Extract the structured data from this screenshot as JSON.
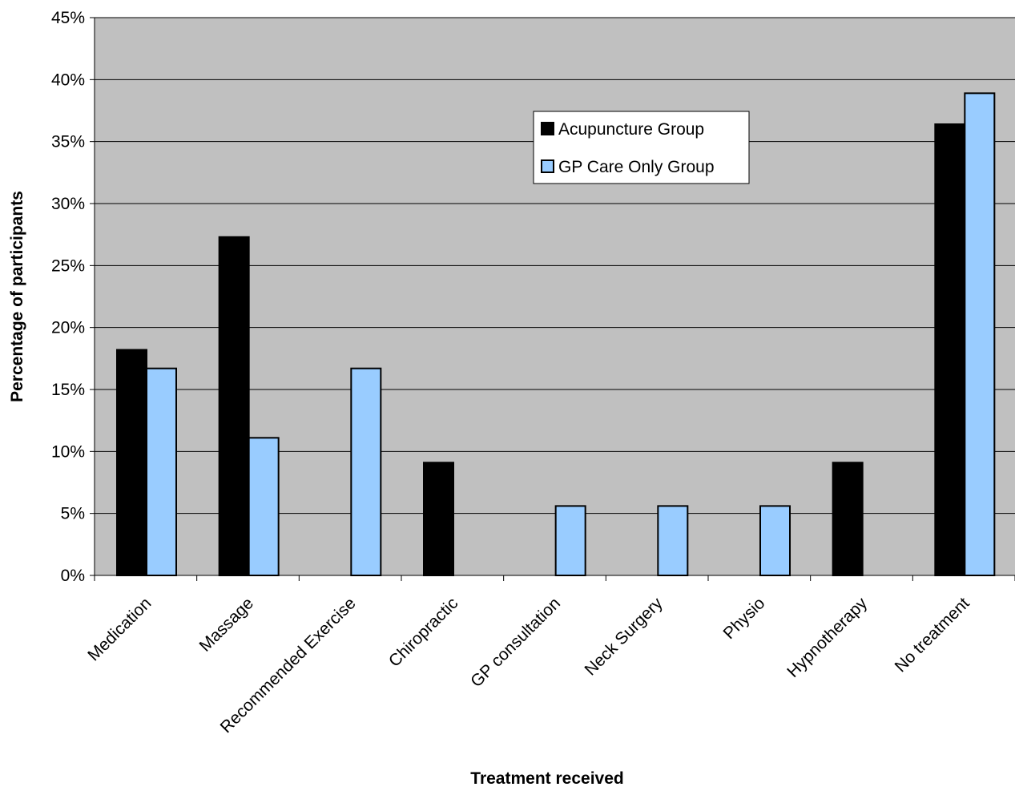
{
  "chart_data": {
    "type": "bar",
    "title": "",
    "xlabel": "Treatment received",
    "ylabel": "Percentage of participants",
    "ylim": [
      0,
      45
    ],
    "y_ticks": [
      0,
      5,
      10,
      15,
      20,
      25,
      30,
      35,
      40,
      45
    ],
    "y_tick_format": "%",
    "grid": true,
    "legend_position": "top-center",
    "plot_background": "#c0c0c0",
    "categories": [
      "Medication",
      "Massage",
      "Recommended Exercise",
      "Chiropractic",
      "GP consultation",
      "Neck Surgery",
      "Physio",
      "Hypnotherapy",
      "No treatment"
    ],
    "series": [
      {
        "name": "Acupuncture Group",
        "color": "#000000",
        "values": [
          18.2,
          27.3,
          0,
          9.1,
          0,
          0,
          0,
          9.1,
          36.4
        ]
      },
      {
        "name": "GP Care Only Group",
        "color": "#99ccff",
        "values": [
          16.7,
          11.1,
          16.7,
          0,
          5.6,
          5.6,
          5.6,
          0,
          38.9
        ]
      }
    ]
  }
}
